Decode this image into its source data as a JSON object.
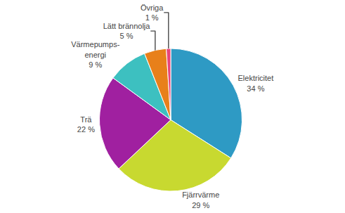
{
  "chart_data": {
    "type": "pie",
    "categories": [
      "Elektricitet",
      "Fjärrvärme",
      "Trä",
      "Värmepumps-\nenergi",
      "Lätt brännolja",
      "Övriga"
    ],
    "values": [
      34,
      29,
      22,
      9,
      5,
      1
    ],
    "value_labels": [
      "34 %",
      "29 %",
      "22 %",
      "9 %",
      "5 %",
      "1 %"
    ],
    "colors": [
      "#2E9AC4",
      "#C8D930",
      "#A020A0",
      "#3DC0C0",
      "#E8801A",
      "#E8457A"
    ],
    "data_labels": true
  }
}
